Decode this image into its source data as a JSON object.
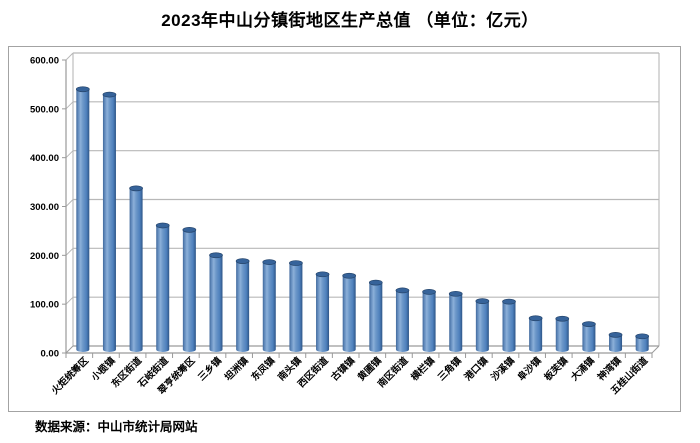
{
  "title": "2023年中山分镇街地区生产总值 （单位：亿元）",
  "source_note": "数据来源：中山市统计局网站",
  "chart_data": {
    "type": "bar",
    "subtype": "3d-cylinder-column",
    "title": "2023年中山分镇街地区生产总值 （单位：亿元）",
    "categories": [
      "火炬统筹区",
      "小榄镇",
      "东区街道",
      "石岐街道",
      "翠亨统筹区",
      "三乡镇",
      "坦洲镇",
      "东凤镇",
      "南头镇",
      "西区街道",
      "古镇镇",
      "黄圃镇",
      "南区街道",
      "横栏镇",
      "三角镇",
      "港口镇",
      "沙溪镇",
      "阜沙镇",
      "板芙镇",
      "大涌镇",
      "神湾镇",
      "五桂山街道"
    ],
    "values": [
      533,
      522,
      330,
      254,
      245,
      193,
      181,
      179,
      177,
      154,
      151,
      137,
      121,
      118,
      114,
      99,
      98,
      64,
      63,
      52,
      30,
      27
    ],
    "xlabel": "",
    "ylabel": "",
    "ylim": [
      0,
      600
    ],
    "ytick_step": 100,
    "ytick_labels": [
      "0.00",
      "100.00",
      "200.00",
      "300.00",
      "400.00",
      "500.00",
      "600.00"
    ],
    "x_label_rotation": -45,
    "grid": true,
    "legend": false,
    "annotation": "数据来源：中山市统计局网站",
    "colors": {
      "bar_main": "#4f81bd",
      "bar_highlight": "#8cb0d9",
      "bar_dark": "#2d5587",
      "bar_edge": "#41699c",
      "bar_cap": "#36639a",
      "bar_cap_edge": "#27476e",
      "gridline": "#b8b8b8",
      "wall": "#b0b0b0",
      "axis": "#9a9a9a",
      "text": "#000000",
      "box_border": "#a3a3a3"
    }
  }
}
